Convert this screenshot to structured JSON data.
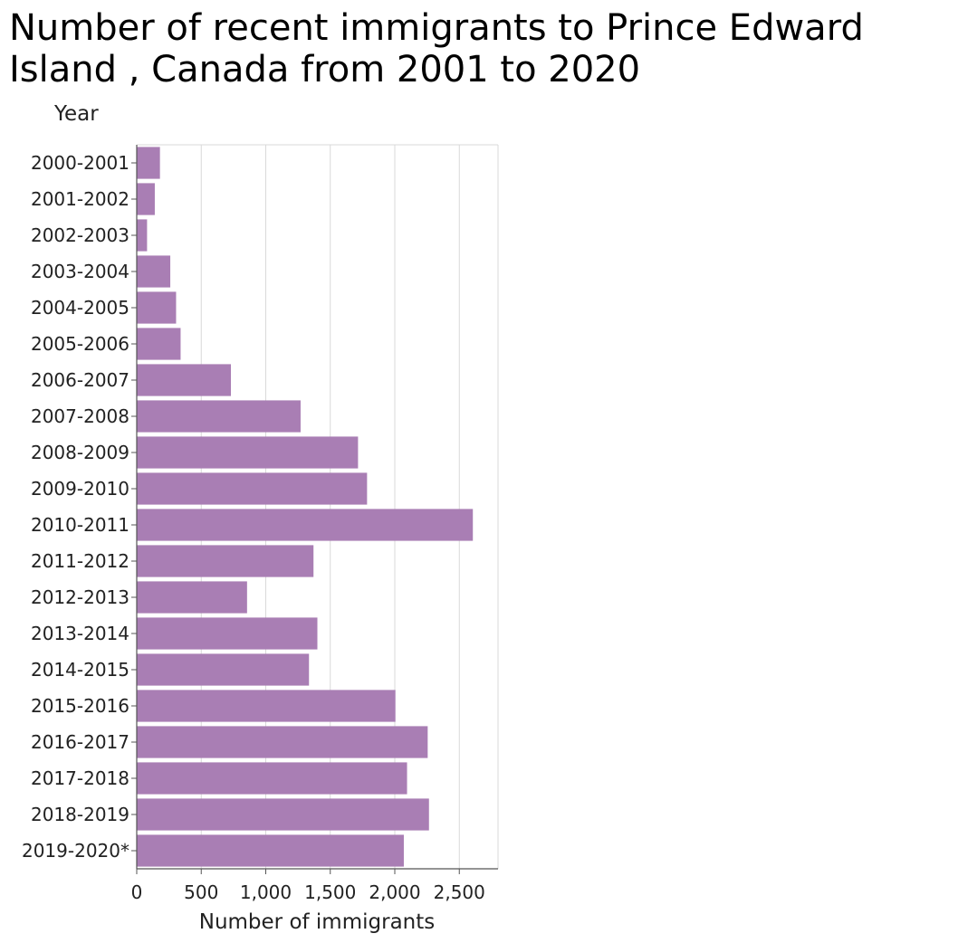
{
  "chart_data": {
    "type": "bar",
    "orientation": "horizontal",
    "title_lines": [
      "Number of recent immigrants to Prince Edward",
      "Island , Canada from 2001 to 2020"
    ],
    "xlabel": "Number of immigrants",
    "ylabel": "Year",
    "categories": [
      "2000-2001",
      "2001-2002",
      "2002-2003",
      "2003-2004",
      "2004-2005",
      "2005-2006",
      "2006-2007",
      "2007-2008",
      "2008-2009",
      "2009-2010",
      "2010-2011",
      "2011-2012",
      "2012-2013",
      "2013-2014",
      "2014-2015",
      "2015-2016",
      "2016-2017",
      "2017-2018",
      "2018-2019",
      "2019-2020*"
    ],
    "values": [
      180,
      140,
      80,
      260,
      305,
      340,
      730,
      1270,
      1715,
      1785,
      2605,
      1370,
      855,
      1400,
      1335,
      2005,
      2255,
      2095,
      2265,
      2070
    ],
    "xlim": [
      0,
      2800
    ],
    "xticks": [
      0,
      500,
      1000,
      1500,
      2000,
      2500
    ],
    "xtick_labels": [
      "0",
      "500",
      "1,000",
      "1,500",
      "2,000",
      "2,500"
    ],
    "grid": "vertical",
    "legend": "none",
    "colors": {
      "bar": "#a97eb4",
      "grid": "#d9d9d9",
      "axis": "#555555"
    }
  }
}
